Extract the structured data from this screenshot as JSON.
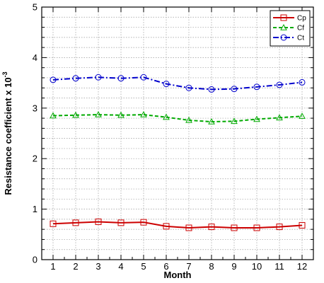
{
  "chart_data": {
    "type": "line",
    "xlabel": "Month",
    "ylabel": "Resistance coefficient x 10",
    "ylabel_exponent": "-3",
    "xlim": [
      0.5,
      12.5
    ],
    "ylim": [
      0,
      5
    ],
    "x": [
      1,
      2,
      3,
      4,
      5,
      6,
      7,
      8,
      9,
      10,
      11,
      12
    ],
    "x_ticks": [
      "1",
      "2",
      "3",
      "4",
      "5",
      "6",
      "7",
      "8",
      "9",
      "10",
      "11",
      "12"
    ],
    "y_ticks": [
      "0",
      "1",
      "2",
      "3",
      "4",
      "5"
    ],
    "grid": true,
    "legend_position": "top-right",
    "series": [
      {
        "name": "Cp",
        "color": "#cc0000",
        "dash": "solid",
        "marker": "square",
        "values": [
          0.71,
          0.73,
          0.75,
          0.73,
          0.74,
          0.66,
          0.63,
          0.65,
          0.63,
          0.63,
          0.65,
          0.68
        ]
      },
      {
        "name": "Cf",
        "color": "#00aa00",
        "dash": "dashed",
        "marker": "triangle",
        "values": [
          2.85,
          2.86,
          2.87,
          2.86,
          2.87,
          2.82,
          2.76,
          2.73,
          2.74,
          2.78,
          2.81,
          2.84
        ]
      },
      {
        "name": "Ct",
        "color": "#0000cc",
        "dash": "dashdot",
        "marker": "circle",
        "values": [
          3.56,
          3.59,
          3.61,
          3.59,
          3.61,
          3.48,
          3.4,
          3.37,
          3.38,
          3.42,
          3.46,
          3.51
        ]
      }
    ]
  }
}
